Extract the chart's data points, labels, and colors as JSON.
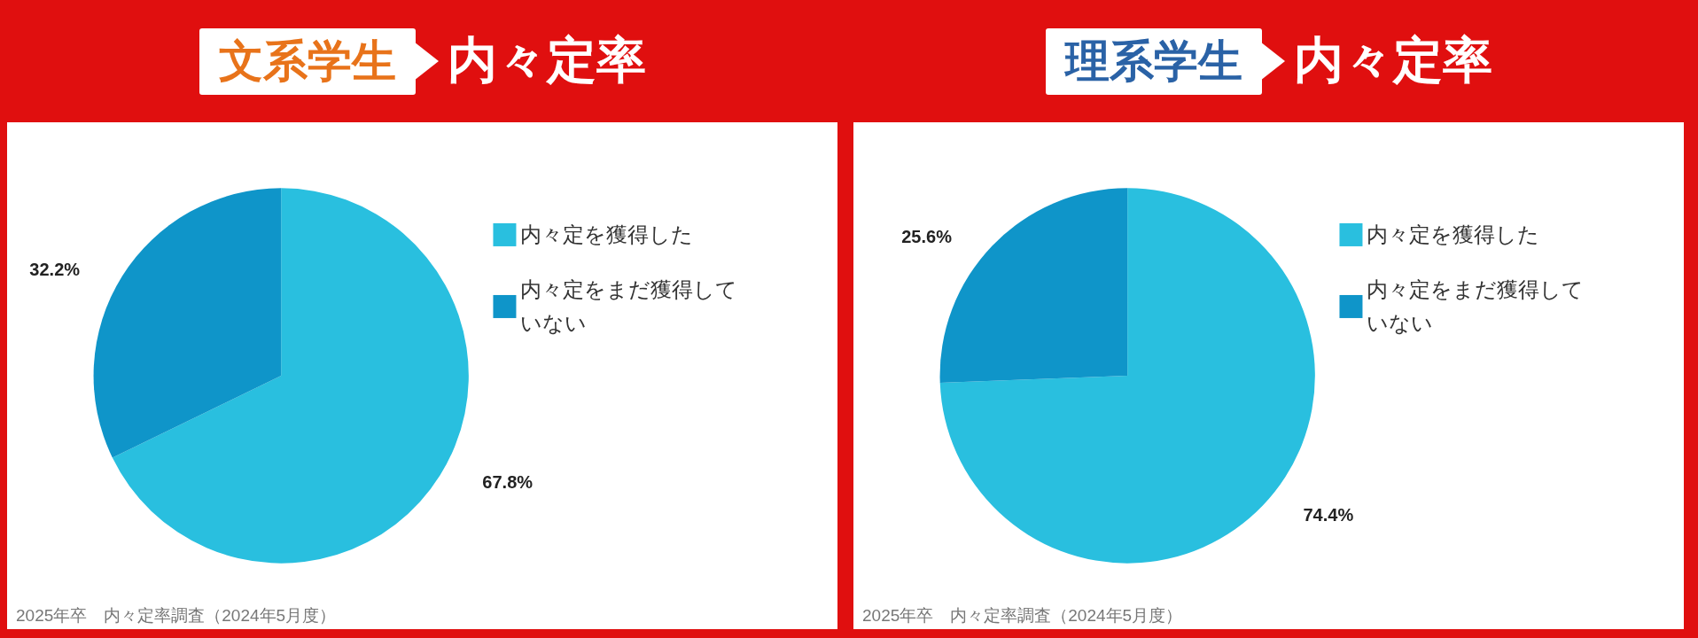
{
  "chart_data": [
    {
      "type": "pie",
      "title": "文系学生",
      "subtitle": "内々定率",
      "categories": [
        "内々定を獲得した",
        "内々定をまだ獲得していない"
      ],
      "values": [
        67.8,
        32.2
      ],
      "value_labels": [
        "67.8%",
        "32.2%"
      ],
      "colors": [
        "#29bfdf",
        "#0f95c9"
      ],
      "legend": "right",
      "annotations": [
        "2025年卒　内々定率調査（2024年5月度）"
      ]
    },
    {
      "type": "pie",
      "title": "理系学生",
      "subtitle": "内々定率",
      "categories": [
        "内々定を獲得した",
        "内々定をまだ獲得していない"
      ],
      "values": [
        74.4,
        25.6
      ],
      "value_labels": [
        "74.4%",
        "25.6%"
      ],
      "colors": [
        "#29bfdf",
        "#0f95c9"
      ],
      "legend": "right",
      "annotations": [
        "2025年卒　内々定率調査（2024年5月度）"
      ]
    }
  ]
}
